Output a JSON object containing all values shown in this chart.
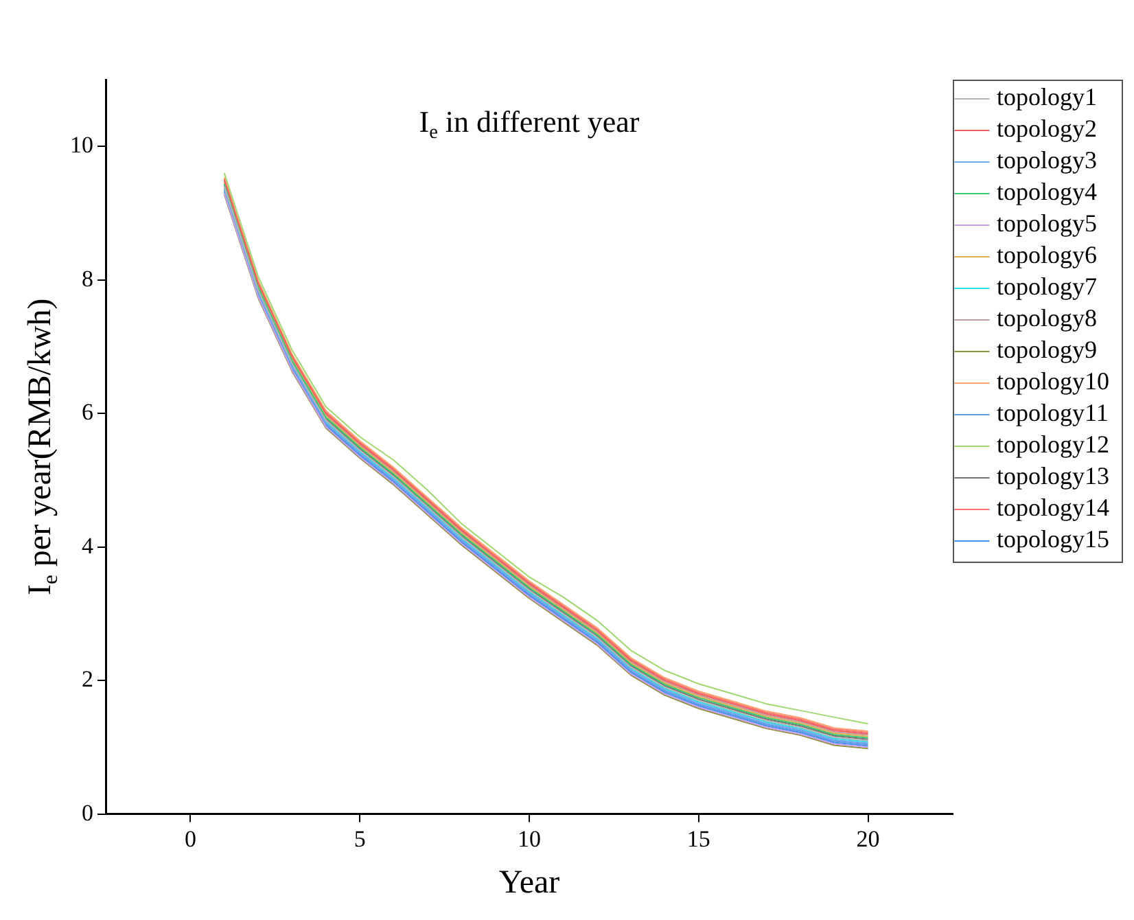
{
  "chart_data": {
    "type": "line",
    "title": "I$_{e}$ in different year",
    "xlabel": "Year",
    "ylabel": "I$_{e}$ per year(RMB/kwh)",
    "x": [
      1,
      2,
      3,
      4,
      5,
      6,
      7,
      8,
      9,
      10,
      11,
      12,
      13,
      14,
      15,
      16,
      17,
      18,
      19,
      20
    ],
    "xlim": [
      -2.5,
      22.5
    ],
    "xticks": [
      0,
      5,
      10,
      15,
      20
    ],
    "ylim": [
      0,
      11
    ],
    "yticks": [
      0,
      2,
      4,
      6,
      8,
      10
    ],
    "grid": false,
    "legend": "top right",
    "marker": "none",
    "line_style": "solid",
    "series": [
      {
        "name": "topology1",
        "color": "#b4b4b4",
        "values": [
          9.4,
          7.85,
          6.75,
          5.9,
          5.45,
          5.05,
          4.6,
          4.15,
          3.75,
          3.35,
          3.0,
          2.65,
          2.2,
          1.9,
          1.7,
          1.55,
          1.4,
          1.3,
          1.15,
          1.1
        ]
      },
      {
        "name": "topology2",
        "color": "#f06060",
        "values": [
          9.5,
          7.95,
          6.85,
          6.0,
          5.55,
          5.15,
          4.7,
          4.25,
          3.85,
          3.45,
          3.1,
          2.75,
          2.3,
          2.0,
          1.8,
          1.65,
          1.5,
          1.4,
          1.25,
          1.2
        ]
      },
      {
        "name": "topology3",
        "color": "#6fa8f0",
        "values": [
          9.36,
          7.81,
          6.71,
          5.86,
          5.41,
          5.01,
          4.56,
          4.11,
          3.71,
          3.31,
          2.96,
          2.61,
          2.16,
          1.86,
          1.66,
          1.51,
          1.36,
          1.26,
          1.11,
          1.06
        ]
      },
      {
        "name": "topology4",
        "color": "#3cc878",
        "values": [
          9.44,
          7.89,
          6.79,
          5.94,
          5.49,
          5.09,
          4.64,
          4.19,
          3.79,
          3.39,
          3.04,
          2.69,
          2.24,
          1.94,
          1.74,
          1.59,
          1.44,
          1.34,
          1.19,
          1.14
        ]
      },
      {
        "name": "topology5",
        "color": "#c8a0f0",
        "values": [
          9.3,
          7.75,
          6.65,
          5.8,
          5.35,
          4.95,
          4.5,
          4.05,
          3.65,
          3.25,
          2.9,
          2.55,
          2.1,
          1.8,
          1.6,
          1.45,
          1.3,
          1.2,
          1.05,
          1.0
        ]
      },
      {
        "name": "topology6",
        "color": "#e0b050",
        "values": [
          9.46,
          7.91,
          6.81,
          5.96,
          5.51,
          5.11,
          4.66,
          4.21,
          3.81,
          3.41,
          3.06,
          2.71,
          2.26,
          1.96,
          1.76,
          1.61,
          1.46,
          1.36,
          1.21,
          1.16
        ]
      },
      {
        "name": "topology7",
        "color": "#30e0e0",
        "values": [
          9.38,
          7.83,
          6.73,
          5.88,
          5.43,
          5.03,
          4.58,
          4.13,
          3.73,
          3.33,
          2.98,
          2.63,
          2.18,
          1.88,
          1.68,
          1.53,
          1.38,
          1.28,
          1.13,
          1.08
        ]
      },
      {
        "name": "topology8",
        "color": "#c0a0a0",
        "values": [
          9.48,
          7.93,
          6.83,
          5.98,
          5.53,
          5.13,
          4.68,
          4.23,
          3.83,
          3.43,
          3.08,
          2.73,
          2.28,
          1.98,
          1.78,
          1.63,
          1.48,
          1.38,
          1.23,
          1.18
        ]
      },
      {
        "name": "topology9",
        "color": "#909040",
        "values": [
          9.28,
          7.73,
          6.63,
          5.78,
          5.33,
          4.93,
          4.48,
          4.03,
          3.63,
          3.23,
          2.88,
          2.53,
          2.08,
          1.78,
          1.58,
          1.43,
          1.28,
          1.18,
          1.03,
          0.98
        ]
      },
      {
        "name": "topology10",
        "color": "#ffa070",
        "values": [
          9.54,
          7.99,
          6.89,
          6.04,
          5.59,
          5.19,
          4.74,
          4.29,
          3.89,
          3.49,
          3.14,
          2.79,
          2.34,
          2.04,
          1.84,
          1.69,
          1.54,
          1.44,
          1.29,
          1.24
        ]
      },
      {
        "name": "topology11",
        "color": "#6098e0",
        "values": [
          9.34,
          7.79,
          6.69,
          5.84,
          5.39,
          4.99,
          4.54,
          4.09,
          3.69,
          3.29,
          2.94,
          2.59,
          2.14,
          1.84,
          1.64,
          1.49,
          1.34,
          1.24,
          1.09,
          1.04
        ]
      },
      {
        "name": "topology12",
        "color": "#a0d870",
        "values": [
          9.6,
          8.05,
          6.95,
          6.1,
          5.65,
          5.3,
          4.85,
          4.35,
          3.95,
          3.55,
          3.25,
          2.9,
          2.45,
          2.15,
          1.95,
          1.8,
          1.65,
          1.55,
          1.45,
          1.35
        ]
      },
      {
        "name": "topology13",
        "color": "#707070",
        "values": [
          9.42,
          7.87,
          6.77,
          5.92,
          5.47,
          5.07,
          4.62,
          4.17,
          3.77,
          3.37,
          3.02,
          2.67,
          2.22,
          1.92,
          1.72,
          1.57,
          1.42,
          1.32,
          1.17,
          1.12
        ]
      },
      {
        "name": "topology14",
        "color": "#ff7070",
        "values": [
          9.52,
          7.97,
          6.87,
          6.02,
          5.57,
          5.17,
          4.72,
          4.27,
          3.87,
          3.47,
          3.12,
          2.77,
          2.32,
          2.02,
          1.82,
          1.67,
          1.52,
          1.42,
          1.27,
          1.22
        ]
      },
      {
        "name": "topology15",
        "color": "#4090f0",
        "values": [
          9.32,
          7.77,
          6.67,
          5.82,
          5.37,
          4.97,
          4.52,
          4.07,
          3.67,
          3.27,
          2.92,
          2.57,
          2.12,
          1.82,
          1.62,
          1.47,
          1.32,
          1.22,
          1.07,
          1.02
        ]
      }
    ]
  }
}
